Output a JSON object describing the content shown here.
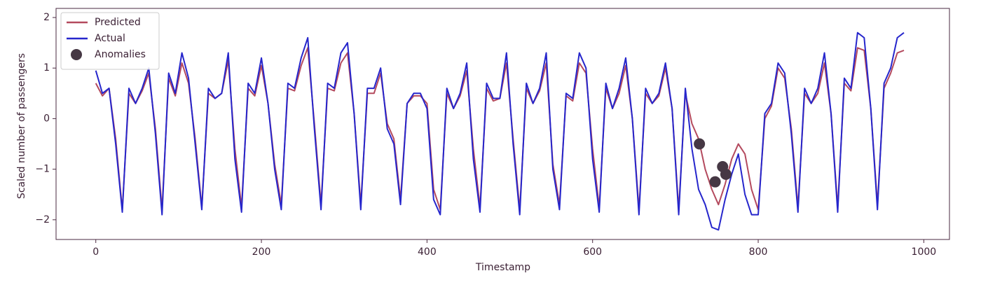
{
  "chart_data": {
    "type": "line",
    "xlabel": "Timestamp",
    "ylabel": "Scaled number of passengers",
    "xlim": [
      -48,
      1031
    ],
    "ylim": [
      -2.39,
      2.18
    ],
    "xticks": [
      0,
      200,
      400,
      600,
      800,
      1000
    ],
    "yticks": [
      {
        "value": -2,
        "label": "−2"
      },
      {
        "value": -1,
        "label": "−1"
      },
      0,
      1,
      2
    ],
    "legend": "upper left",
    "x": [
      0,
      8,
      16,
      24,
      32,
      40,
      48,
      56,
      64,
      72,
      80,
      88,
      96,
      104,
      112,
      120,
      128,
      136,
      144,
      152,
      160,
      168,
      176,
      184,
      192,
      200,
      208,
      216,
      224,
      232,
      240,
      248,
      256,
      264,
      272,
      280,
      288,
      296,
      304,
      312,
      320,
      328,
      336,
      344,
      352,
      360,
      368,
      376,
      384,
      392,
      400,
      408,
      416,
      424,
      432,
      440,
      448,
      456,
      464,
      472,
      480,
      488,
      496,
      504,
      512,
      520,
      528,
      536,
      544,
      552,
      560,
      568,
      576,
      584,
      592,
      600,
      608,
      616,
      624,
      632,
      640,
      648,
      656,
      664,
      672,
      680,
      688,
      696,
      704,
      712,
      720,
      728,
      736,
      744,
      752,
      760,
      768,
      776,
      784,
      792,
      800,
      808,
      816,
      824,
      832,
      840,
      848,
      856,
      864,
      872,
      880,
      888,
      896,
      904,
      912,
      920,
      928,
      936,
      944,
      952,
      960,
      968,
      976
    ],
    "series": [
      {
        "name": "Predicted",
        "style": "line",
        "color": "#b44a5e",
        "values": [
          0.7,
          0.45,
          0.6,
          -0.4,
          -1.8,
          0.5,
          0.3,
          0.55,
          0.9,
          -0.2,
          -1.8,
          0.8,
          0.45,
          1.1,
          0.7,
          -0.4,
          -1.75,
          0.5,
          0.4,
          0.5,
          1.15,
          -0.6,
          -1.75,
          0.6,
          0.45,
          1.05,
          0.3,
          -0.9,
          -1.7,
          0.6,
          0.55,
          1.05,
          1.4,
          -0.1,
          -1.7,
          0.6,
          0.55,
          1.1,
          1.3,
          0.1,
          -1.7,
          0.5,
          0.5,
          0.9,
          -0.1,
          -0.4,
          -1.6,
          0.3,
          0.45,
          0.45,
          0.3,
          -1.4,
          -1.8,
          0.5,
          0.2,
          0.45,
          0.95,
          -0.6,
          -1.75,
          0.6,
          0.35,
          0.4,
          1.1,
          -0.4,
          -1.8,
          0.6,
          0.3,
          0.55,
          1.1,
          -0.9,
          -1.7,
          0.45,
          0.35,
          1.1,
          0.9,
          -0.6,
          -1.75,
          0.6,
          0.2,
          0.5,
          1.05,
          0.0,
          -1.8,
          0.5,
          0.3,
          0.45,
          1.0,
          0.2,
          -1.8,
          0.5,
          -0.1,
          -0.4,
          -1.0,
          -1.4,
          -1.7,
          -1.3,
          -0.8,
          -0.5,
          -0.7,
          -1.4,
          -1.8,
          0.0,
          0.25,
          1.0,
          0.8,
          -0.2,
          -1.75,
          0.5,
          0.3,
          0.5,
          1.1,
          0.1,
          -1.75,
          0.7,
          0.55,
          1.4,
          1.35,
          0.2,
          -1.7,
          0.6,
          0.9,
          1.3,
          1.35
        ]
      },
      {
        "name": "Actual",
        "style": "line",
        "color": "#2626cc",
        "values": [
          0.95,
          0.5,
          0.6,
          -0.5,
          -1.85,
          0.6,
          0.3,
          0.6,
          1.0,
          -0.3,
          -1.9,
          0.9,
          0.5,
          1.3,
          0.8,
          -0.5,
          -1.8,
          0.6,
          0.4,
          0.5,
          1.3,
          -0.8,
          -1.85,
          0.7,
          0.5,
          1.2,
          0.3,
          -1.0,
          -1.8,
          0.7,
          0.6,
          1.2,
          1.6,
          -0.2,
          -1.8,
          0.7,
          0.6,
          1.3,
          1.5,
          0.1,
          -1.8,
          0.6,
          0.6,
          1.0,
          -0.2,
          -0.5,
          -1.7,
          0.3,
          0.5,
          0.5,
          0.2,
          -1.6,
          -1.9,
          0.6,
          0.2,
          0.5,
          1.1,
          -0.8,
          -1.85,
          0.7,
          0.4,
          0.4,
          1.3,
          -0.5,
          -1.9,
          0.7,
          0.3,
          0.6,
          1.3,
          -1.0,
          -1.8,
          0.5,
          0.4,
          1.3,
          1.0,
          -0.8,
          -1.85,
          0.7,
          0.2,
          0.6,
          1.2,
          0.0,
          -1.9,
          0.6,
          0.3,
          0.5,
          1.1,
          0.2,
          -1.9,
          0.6,
          -0.6,
          -1.4,
          -1.7,
          -2.15,
          -2.2,
          -1.6,
          -1.1,
          -0.7,
          -1.5,
          -1.9,
          -1.9,
          0.1,
          0.3,
          1.1,
          0.9,
          -0.3,
          -1.85,
          0.6,
          0.3,
          0.6,
          1.3,
          0.1,
          -1.85,
          0.8,
          0.6,
          1.7,
          1.6,
          0.2,
          -1.8,
          0.7,
          1.0,
          1.6,
          1.7
        ]
      },
      {
        "name": "Anomalies",
        "style": "marker",
        "color": "#463844",
        "x": [
          729,
          748,
          757,
          761
        ],
        "values": [
          -0.5,
          -1.25,
          -0.95,
          -1.1
        ]
      }
    ]
  }
}
